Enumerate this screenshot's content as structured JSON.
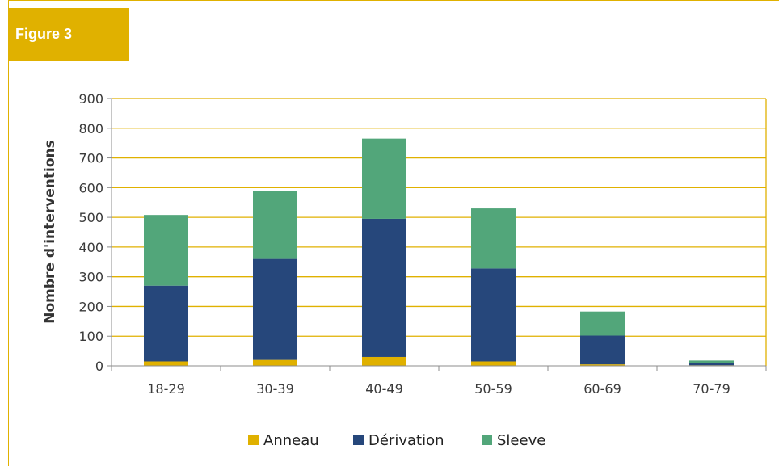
{
  "figure_label": "Figure 3",
  "colors": {
    "accent": "#e0b100",
    "grid": "#e0b100",
    "axis": "#8c8c8c"
  },
  "chart_data": {
    "type": "bar",
    "stacked": true,
    "categories": [
      "18-29",
      "30-39",
      "40-49",
      "50-59",
      "60-69",
      "70-79"
    ],
    "series": [
      {
        "name": "Anneau",
        "color": "#e0b100",
        "values": [
          15,
          20,
          30,
          15,
          5,
          2
        ]
      },
      {
        "name": "Dérivation",
        "color": "#26477b",
        "values": [
          255,
          340,
          465,
          313,
          97,
          8
        ]
      },
      {
        "name": "Sleeve",
        "color": "#52a67a",
        "values": [
          238,
          228,
          270,
          202,
          81,
          8
        ]
      }
    ],
    "ylabel": "Nombre d'interventions",
    "xlabel": "",
    "ylim": [
      0,
      900
    ],
    "yticks": [
      0,
      100,
      200,
      300,
      400,
      500,
      600,
      700,
      800,
      900
    ],
    "grid": true,
    "legend": "bottom"
  }
}
